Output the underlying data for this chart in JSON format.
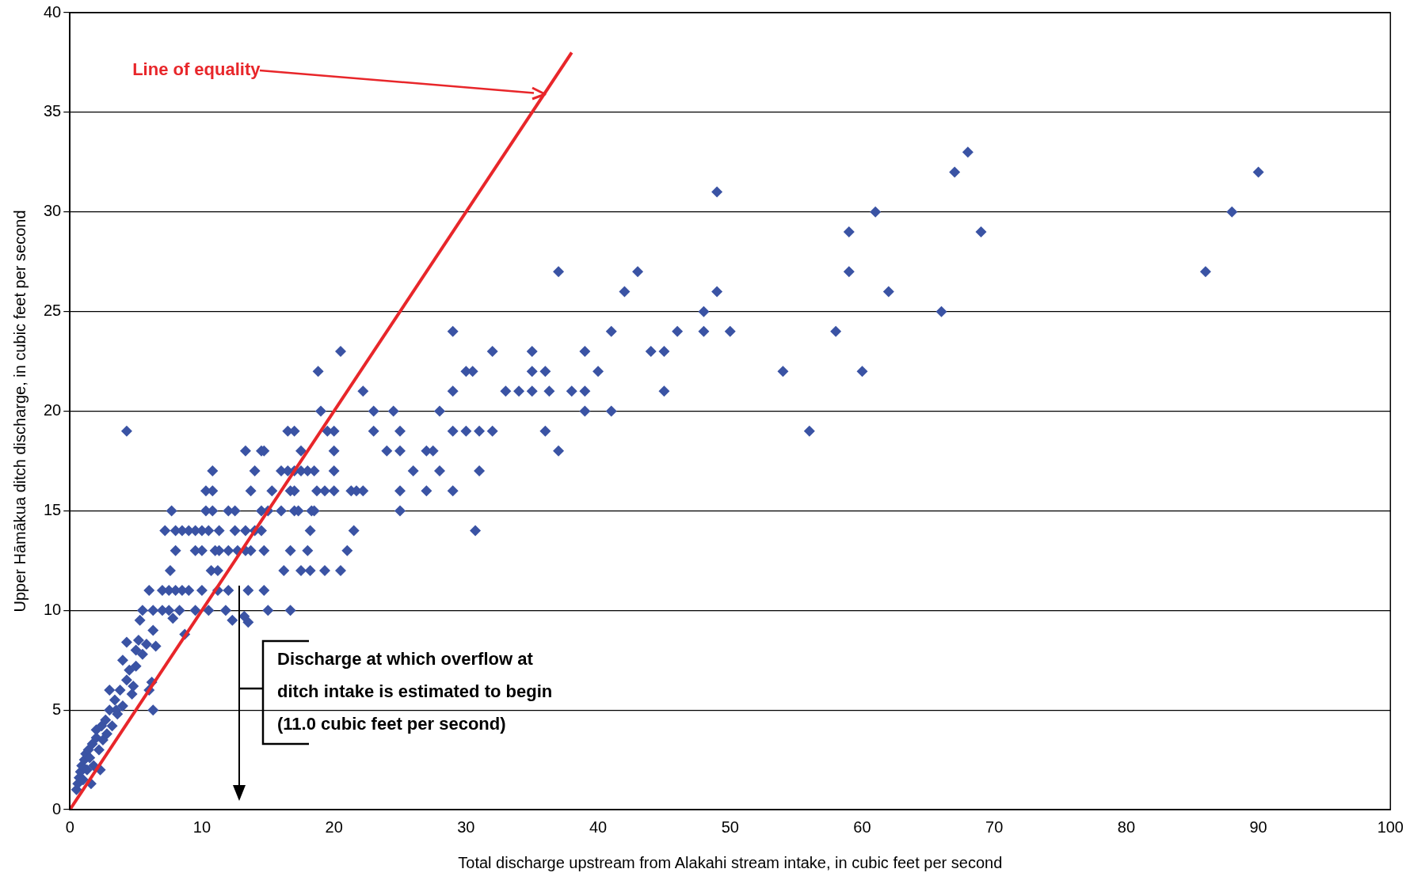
{
  "chart_data": {
    "type": "scatter",
    "xlabel": "Total discharge upstream from Alakahi stream intake, in cubic feet per second",
    "ylabel": "Upper Hāmākua ditch discharge, in cubic feet per second",
    "xlim": [
      0,
      100
    ],
    "xticks": [
      0,
      10,
      20,
      30,
      40,
      50,
      60,
      70,
      80,
      90,
      100
    ],
    "ylim": [
      0,
      40
    ],
    "yticks": [
      0,
      5,
      10,
      15,
      20,
      25,
      30,
      35,
      40
    ],
    "grid": "y",
    "legend": false,
    "marker": "diamond",
    "annotations": [
      "Line of equality",
      "Discharge at which overflow at ditch intake is estimated to begin (11.0 cubic feet per second)"
    ],
    "series": [
      {
        "color": "#3a53a4",
        "x": [
          68,
          67,
          90,
          49,
          61,
          88,
          59,
          69,
          37,
          43,
          59,
          86,
          42,
          49,
          62,
          48,
          66,
          29,
          41,
          46,
          48,
          50,
          58,
          20.5,
          32,
          35,
          39,
          44,
          45,
          18.8,
          30,
          30.5,
          35,
          36,
          40,
          54,
          60,
          22.2,
          29,
          33,
          34,
          35,
          36.3,
          38,
          39,
          45,
          19,
          23,
          24.5,
          28,
          39,
          41,
          4.3,
          16.5,
          17,
          19.5,
          20,
          23,
          25,
          29,
          30,
          31,
          32,
          36,
          56,
          13.3,
          14.5,
          14.7,
          17.5,
          20,
          24,
          25,
          27,
          27.5,
          37,
          10.8,
          14,
          16,
          16.5,
          17,
          17.5,
          18,
          18.5,
          20,
          26,
          28,
          31,
          10.3,
          10.8,
          13.7,
          15.3,
          16.7,
          17,
          18.7,
          19.3,
          20,
          21.3,
          21.7,
          22.2,
          25,
          27,
          29,
          7.7,
          10.3,
          10.8,
          12,
          12.5,
          14.5,
          15,
          16,
          17,
          17.3,
          18.3,
          18.5,
          25,
          7.2,
          8,
          8.5,
          9,
          9.5,
          10,
          10.5,
          11.3,
          12.5,
          13.3,
          14,
          14.5,
          18.2,
          21.5,
          30.7,
          8,
          9.5,
          10,
          11,
          11.3,
          12,
          12.7,
          13.3,
          13.7,
          14.7,
          16.7,
          18,
          21,
          7.6,
          10.7,
          11.2,
          16.2,
          17.5,
          18.2,
          19.3,
          20.5,
          6,
          7,
          7.5,
          8,
          8.5,
          9,
          10,
          11.2,
          12,
          13.5,
          14.7,
          5.5,
          6.3,
          7,
          7.5,
          8.3,
          9.5,
          10.5,
          11.8,
          15,
          16.7,
          5.3,
          7.8,
          12.3,
          13.2,
          13.5,
          8.7,
          6.3,
          0.5,
          0.6,
          0.7,
          0.8,
          0.9,
          1,
          1.1,
          1.2,
          1.3,
          1.4,
          1.5,
          1.7,
          1.8,
          2,
          2,
          2.2,
          2.4,
          2.5,
          2.7,
          2.8,
          3,
          3,
          3.2,
          3.4,
          3.6,
          3.8,
          4,
          4,
          4.3,
          4.3,
          4.5,
          4.7,
          5,
          5,
          5.2,
          5.5,
          5.8,
          6,
          6.2,
          6.5,
          6.3,
          4.8,
          3.5,
          2.3,
          1.6
        ],
        "values": [
          33,
          32,
          32,
          31,
          30,
          30,
          29,
          29,
          27,
          27,
          27,
          27,
          26,
          26,
          26,
          25,
          25,
          24,
          24,
          24,
          24,
          24,
          24,
          23,
          23,
          23,
          23,
          23,
          23,
          22,
          22,
          22,
          22,
          22,
          22,
          22,
          22,
          21,
          21,
          21,
          21,
          21,
          21,
          21,
          21,
          21,
          20,
          20,
          20,
          20,
          20,
          20,
          19,
          19,
          19,
          19,
          19,
          19,
          19,
          19,
          19,
          19,
          19,
          19,
          19,
          18,
          18,
          18,
          18,
          18,
          18,
          18,
          18,
          18,
          18,
          17,
          17,
          17,
          17,
          17,
          17,
          17,
          17,
          17,
          17,
          17,
          17,
          16,
          16,
          16,
          16,
          16,
          16,
          16,
          16,
          16,
          16,
          16,
          16,
          16,
          16,
          16,
          15,
          15,
          15,
          15,
          15,
          15,
          15,
          15,
          15,
          15,
          15,
          15,
          15,
          14,
          14,
          14,
          14,
          14,
          14,
          14,
          14,
          14,
          14,
          14,
          14,
          14,
          14,
          14,
          13,
          13,
          13,
          13,
          13,
          13,
          13,
          13,
          13,
          13,
          13,
          13,
          13,
          12,
          12,
          12,
          12,
          12,
          12,
          12,
          12,
          11,
          11,
          11,
          11,
          11,
          11,
          11,
          11,
          11,
          11,
          11,
          10,
          10,
          10,
          10,
          10,
          10,
          10,
          10,
          10,
          10,
          9.5,
          9.6,
          9.5,
          9.7,
          9.4,
          8.8,
          9,
          1,
          1.3,
          1.6,
          1.9,
          2.2,
          1.5,
          2.5,
          2.8,
          2,
          3,
          2.6,
          3.3,
          2.2,
          3.6,
          4,
          3,
          4.2,
          3.5,
          4.5,
          3.8,
          5,
          6,
          4.2,
          5.5,
          4.8,
          6,
          5.2,
          7.5,
          6.5,
          8.4,
          7,
          5.8,
          8,
          7.2,
          8.5,
          7.8,
          8.3,
          6,
          6.4,
          8.2,
          5,
          6.2,
          5,
          2,
          1.3
        ]
      },
      {
        "type": "line",
        "marker": "none",
        "color": "#e8262a",
        "x": [
          0,
          38
        ],
        "values": [
          0,
          38
        ]
      }
    ]
  }
}
